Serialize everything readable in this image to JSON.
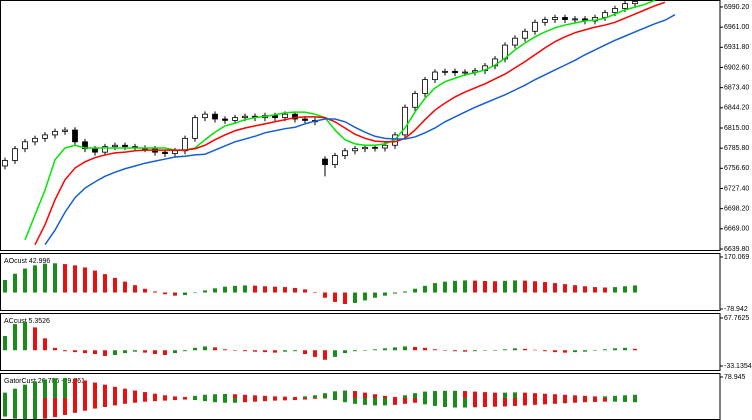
{
  "chart_data": [
    {
      "type": "candlestick",
      "open": [
        6760,
        6768,
        6785,
        6795,
        6800,
        6805,
        6810,
        6812,
        6795,
        6785,
        6780,
        6788,
        6790,
        6788,
        6786,
        6785,
        6780,
        6778,
        6782,
        6800,
        6830,
        6835,
        6828,
        6826,
        6830,
        6832,
        6830,
        6833,
        6830,
        6835,
        6828,
        6826,
        6770,
        6762,
        6775,
        6782,
        6785,
        6787,
        6786,
        6790,
        6805,
        6845,
        6865,
        6885,
        6896,
        6897,
        6895,
        6896,
        6898,
        6905,
        6915,
        6935,
        6945,
        6955,
        6968,
        6972,
        6975,
        6972,
        6973,
        6970,
        6975,
        6982,
        6988,
        6995,
        null,
        null,
        null,
        null
      ],
      "high": [
        6772,
        6789,
        6799,
        6804,
        6809,
        6814,
        6816,
        6816,
        6799,
        6789,
        6792,
        6794,
        6794,
        6792,
        6790,
        6789,
        6784,
        6786,
        6804,
        6834,
        6839,
        6839,
        6832,
        6834,
        6836,
        6836,
        6837,
        6837,
        6839,
        6839,
        6832,
        6830,
        6774,
        6779,
        6786,
        6789,
        6791,
        6791,
        6794,
        6809,
        6849,
        6869,
        6889,
        6900,
        6901,
        6901,
        6900,
        6902,
        6909,
        6919,
        6939,
        6949,
        6959,
        6972,
        6976,
        6979,
        6979,
        6977,
        6977,
        6979,
        6986,
        6992,
        6999,
        7002,
        null,
        null,
        null,
        null
      ],
      "low": [
        6755,
        6763,
        6780,
        6790,
        6795,
        6800,
        6805,
        6790,
        6780,
        6775,
        6775,
        6783,
        6783,
        6781,
        6780,
        6775,
        6773,
        6773,
        6777,
        6795,
        6825,
        6823,
        6821,
        6821,
        6825,
        6825,
        6825,
        6825,
        6825,
        6823,
        6821,
        6819,
        6745,
        6757,
        6770,
        6777,
        6780,
        6781,
        6781,
        6785,
        6800,
        6840,
        6860,
        6880,
        6891,
        6890,
        6890,
        6891,
        6893,
        6900,
        6910,
        6930,
        6940,
        6950,
        6963,
        6967,
        6967,
        6967,
        6965,
        6965,
        6970,
        6977,
        6983,
        6990,
        null,
        null,
        null,
        null
      ],
      "close": [
        6768,
        6785,
        6795,
        6800,
        6805,
        6810,
        6812,
        6795,
        6785,
        6780,
        6788,
        6790,
        6788,
        6786,
        6785,
        6780,
        6778,
        6782,
        6800,
        6830,
        6835,
        6828,
        6826,
        6830,
        6832,
        6830,
        6833,
        6830,
        6835,
        6828,
        6826,
        6824,
        6762,
        6775,
        6782,
        6785,
        6787,
        6786,
        6790,
        6805,
        6845,
        6865,
        6885,
        6896,
        6897,
        6895,
        6896,
        6898,
        6905,
        6915,
        6935,
        6945,
        6955,
        6968,
        6972,
        6975,
        6972,
        6973,
        6970,
        6975,
        6982,
        6988,
        6995,
        6998,
        null,
        null,
        null,
        null
      ],
      "up_color": "#ffffff",
      "down_color": "#000000",
      "series": [
        {
          "color": "#00e600",
          "values": [
            null,
            null,
            6653,
            6689,
            6725,
            6769,
            6786,
            6790,
            6786,
            6786,
            6786,
            6786,
            6786,
            6786,
            6786,
            6786,
            6786,
            6783,
            6783,
            6786,
            6798,
            6809,
            6818,
            6822,
            6827,
            6830,
            6832,
            6834,
            6837,
            6838,
            6838,
            6835,
            6830,
            6812,
            6798,
            6792,
            6790,
            6790,
            6792,
            6798,
            6815,
            6838,
            6858,
            6873,
            6882,
            6887,
            6892,
            6895,
            6899,
            6906,
            6916,
            6928,
            6938,
            6947,
            6954,
            6960,
            6964,
            6967,
            6970,
            6971,
            6974,
            6980,
            6986,
            6990,
            6994,
            7000,
            null,
            null
          ]
        },
        {
          "color": "#ff0000",
          "values": [
            null,
            null,
            null,
            6646,
            6675,
            6711,
            6740,
            6757,
            6766,
            6772,
            6776,
            6779,
            6780,
            6782,
            6783,
            6783,
            6783,
            6783,
            6783,
            6785,
            6790,
            6798,
            6805,
            6811,
            6815,
            6818,
            6821,
            6824,
            6827,
            6830,
            6831,
            6831,
            6830,
            6824,
            6815,
            6806,
            6800,
            6796,
            6795,
            6795,
            6800,
            6812,
            6827,
            6841,
            6851,
            6860,
            6867,
            6873,
            6879,
            6886,
            6893,
            6902,
            6911,
            6921,
            6931,
            6940,
            6947,
            6953,
            6957,
            6961,
            6964,
            6968,
            6974,
            6980,
            6986,
            6992,
            6997,
            null
          ]
        },
        {
          "color": "#1560d0",
          "values": [
            null,
            null,
            null,
            null,
            6646,
            6667,
            6693,
            6714,
            6728,
            6737,
            6745,
            6751,
            6756,
            6760,
            6764,
            6767,
            6770,
            6773,
            6774,
            6776,
            6777,
            6783,
            6789,
            6795,
            6799,
            6803,
            6808,
            6811,
            6814,
            6816,
            6821,
            6825,
            6828,
            6828,
            6824,
            6816,
            6809,
            6803,
            6800,
            6799,
            6799,
            6802,
            6808,
            6815,
            6824,
            6831,
            6838,
            6845,
            6851,
            6857,
            6863,
            6870,
            6877,
            6885,
            6892,
            6899,
            6906,
            6913,
            6921,
            6928,
            6935,
            6942,
            6948,
            6954,
            6960,
            6966,
            6971,
            6979
          ]
        }
      ],
      "ylim": [
        6636.9,
        7000.3
      ],
      "yticks": [
        {
          "value": 6990.2,
          "label": "6990.20"
        },
        {
          "value": 6961,
          "label": "6961.00"
        },
        {
          "value": 6931.8,
          "label": "6931.80"
        },
        {
          "value": 6902.6,
          "label": "6902.60"
        },
        {
          "value": 6873.4,
          "label": "6873.40"
        },
        {
          "value": 6844.2,
          "label": "6844.20"
        },
        {
          "value": 6815,
          "label": "6815.00"
        },
        {
          "value": 6785.8,
          "label": "6785.80"
        },
        {
          "value": 6756.6,
          "label": "6756.60"
        },
        {
          "value": 6727.4,
          "label": "6727.40"
        },
        {
          "value": 6698.2,
          "label": "6698.20"
        },
        {
          "value": 6669,
          "label": "6669.00"
        },
        {
          "value": 6639.8,
          "label": "6639.80"
        }
      ]
    },
    {
      "type": "bar",
      "title": "AOcust 42.996",
      "up_color": "#1a8c1a",
      "down_color": "#e81010",
      "series": [
        {
          "values": [
            60,
            90,
            115,
            130,
            138,
            140,
            136,
            130,
            120,
            105,
            88,
            70,
            52,
            35,
            18,
            5,
            -8,
            -15,
            -12,
            -2,
            10,
            20,
            28,
            32,
            34,
            33,
            30,
            28,
            26,
            22,
            15,
            0,
            -25,
            -45,
            -55,
            -50,
            -38,
            -25,
            -15,
            -5,
            5,
            18,
            32,
            45,
            52,
            56,
            58,
            57,
            55,
            54,
            56,
            58,
            57,
            54,
            50,
            45,
            40,
            35,
            30,
            26,
            24,
            26,
            30,
            34
          ]
        }
      ],
      "ylim": [
        -78.942,
        170.069
      ],
      "yticks": [
        170.069,
        -78.942
      ]
    },
    {
      "type": "bar",
      "title": "ACcust 5.3526",
      "up_color": "#1a8c1a",
      "down_color": "#e81010",
      "series": [
        {
          "values": [
            30,
            55,
            60,
            48,
            25,
            5,
            -2,
            -4,
            -6,
            -8,
            -12,
            -10,
            -6,
            -3,
            -5,
            -8,
            -10,
            -6,
            -2,
            5,
            8,
            6,
            2,
            -1,
            -2,
            -3,
            -4,
            -5,
            -3,
            -2,
            -8,
            -14,
            -20,
            -14,
            -6,
            -2,
            0,
            2,
            4,
            6,
            8,
            7,
            5,
            2,
            0,
            -2,
            -3,
            -2,
            -1,
            0,
            2,
            4,
            3,
            1,
            -2,
            -4,
            -5,
            -4,
            -3,
            -1,
            2,
            4,
            5,
            3
          ]
        }
      ],
      "ylim": [
        -33.1354,
        67.7625
      ],
      "yticks": [
        67.7625,
        -33.1354
      ]
    },
    {
      "type": "bar",
      "title": "GatorCust 26.706 -19.761",
      "up_color": "#1a8c1a",
      "down_color": "#e81010",
      "series": [
        {
          "values": [
            20,
            35,
            50,
            62,
            70,
            74,
            75,
            72,
            66,
            58,
            50,
            42,
            35,
            28,
            22,
            16,
            10,
            6,
            4,
            8,
            12,
            14,
            15,
            14,
            12,
            10,
            8,
            6,
            5,
            4,
            6,
            10,
            18,
            25,
            28,
            26,
            20,
            14,
            8,
            4,
            10,
            18,
            24,
            26,
            27,
            27,
            26,
            24,
            22,
            20,
            20,
            21,
            20,
            18,
            16,
            14,
            12,
            10,
            8,
            6,
            6,
            8,
            10,
            12
          ]
        },
        {
          "values": [
            -70,
            -78,
            -80,
            -80,
            -78,
            -72,
            -64,
            -56,
            -48,
            -40,
            -34,
            -28,
            -22,
            -18,
            -14,
            -12,
            -10,
            -8,
            -6,
            -8,
            -12,
            -16,
            -18,
            -18,
            -16,
            -14,
            -12,
            -10,
            -9,
            -8,
            -6,
            -3,
            -2,
            -8,
            -16,
            -22,
            -26,
            -28,
            -28,
            -26,
            -22,
            -18,
            -24,
            -30,
            -34,
            -36,
            -36,
            -35,
            -34,
            -33,
            -32,
            -30,
            -28,
            -26,
            -24,
            -22,
            -20,
            -18,
            -16,
            -15,
            -14,
            -14,
            -15,
            -16
          ]
        }
      ],
      "ylim": [
        -83,
        78.945
      ],
      "yticks": [
        78.945
      ]
    }
  ]
}
